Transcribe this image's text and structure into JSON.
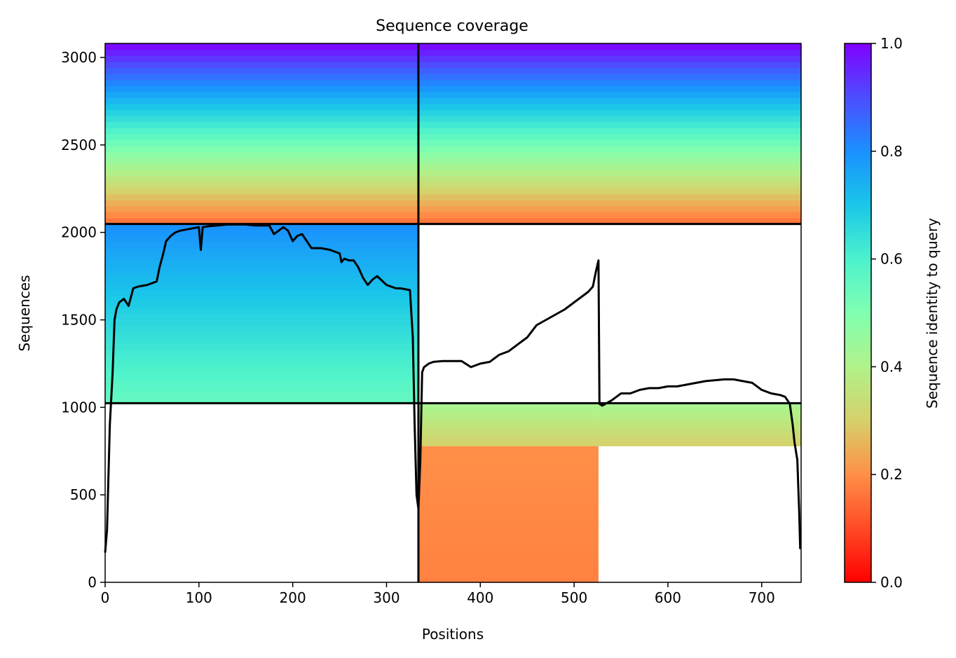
{
  "chart_data": {
    "type": "heatmap",
    "title": "Sequence coverage",
    "xlabel": "Positions",
    "ylabel": "Sequences",
    "xlim": [
      0,
      742
    ],
    "ylim": [
      0,
      3080
    ],
    "xticks": [
      0,
      100,
      200,
      300,
      400,
      500,
      600,
      700
    ],
    "yticks": [
      0,
      500,
      1000,
      1500,
      2000,
      2500,
      3000
    ],
    "colorbar": {
      "label": "Sequence identity to query",
      "colormap": "rainbow_r",
      "range": [
        0,
        1
      ],
      "ticks": [
        "0.0",
        "0.2",
        "0.4",
        "0.6",
        "0.8",
        "1.0"
      ]
    },
    "divider_lines": {
      "x": [
        334
      ],
      "y": [
        1024,
        2048
      ]
    },
    "blocks": [
      {
        "x": [
          0,
          334
        ],
        "y": [
          2048,
          3080
        ],
        "identity_bottom": 0.15,
        "identity_top": 1.0
      },
      {
        "x": [
          334,
          742
        ],
        "y": [
          2048,
          3080
        ],
        "identity_bottom": 0.15,
        "identity_top": 1.0
      },
      {
        "x": [
          0,
          334
        ],
        "y": [
          1024,
          2048
        ],
        "identity_bottom": 0.55,
        "identity_top": 0.8
      },
      {
        "x": [
          334,
          742
        ],
        "y": [
          1024,
          2048
        ],
        "identity_bottom": 0.4,
        "identity_top": 0.4,
        "empty": true
      },
      {
        "x": [
          0,
          334
        ],
        "y": [
          0,
          1024
        ],
        "identity_bottom": 0.2,
        "identity_top": 0.2,
        "empty": true
      },
      {
        "x": [
          334,
          526
        ],
        "y": [
          0,
          780
        ],
        "identity_bottom": 0.18,
        "identity_top": 0.2
      },
      {
        "x": [
          334,
          526
        ],
        "y": [
          780,
          1024
        ],
        "identity_bottom": 0.3,
        "identity_top": 0.42
      },
      {
        "x": [
          526,
          742
        ],
        "y": [
          780,
          1024
        ],
        "identity_bottom": 0.3,
        "identity_top": 0.42
      }
    ],
    "series": [
      {
        "type": "line",
        "color": "#000000",
        "x": [
          0,
          2,
          5,
          8,
          10,
          12,
          15,
          20,
          25,
          30,
          35,
          45,
          55,
          58,
          62,
          65,
          70,
          75,
          80,
          90,
          100,
          102,
          104,
          110,
          120,
          130,
          140,
          150,
          160,
          175,
          180,
          190,
          195,
          200,
          205,
          210,
          220,
          230,
          240,
          250,
          252,
          255,
          260,
          265,
          270,
          275,
          280,
          285,
          290,
          300,
          310,
          315,
          325,
          328,
          330,
          332,
          334,
          336,
          338,
          340,
          345,
          350,
          360,
          370,
          380,
          390,
          400,
          410,
          420,
          430,
          440,
          450,
          460,
          470,
          480,
          490,
          500,
          510,
          515,
          520,
          523,
          526,
          527,
          530,
          540,
          550,
          560,
          570,
          580,
          590,
          600,
          610,
          620,
          630,
          640,
          650,
          660,
          670,
          680,
          690,
          700,
          710,
          720,
          725,
          730,
          733,
          735,
          738,
          740,
          741
        ],
        "y": [
          170,
          300,
          900,
          1200,
          1500,
          1560,
          1600,
          1620,
          1580,
          1680,
          1690,
          1700,
          1720,
          1800,
          1880,
          1950,
          1980,
          2000,
          2010,
          2020,
          2030,
          1900,
          2030,
          2035,
          2040,
          2045,
          2045,
          2045,
          2040,
          2040,
          1990,
          2030,
          2010,
          1950,
          1980,
          1990,
          1910,
          1910,
          1900,
          1880,
          1830,
          1850,
          1840,
          1840,
          1800,
          1740,
          1700,
          1730,
          1750,
          1700,
          1680,
          1680,
          1670,
          1400,
          900,
          500,
          420,
          700,
          1200,
          1230,
          1250,
          1260,
          1265,
          1265,
          1265,
          1230,
          1250,
          1260,
          1300,
          1320,
          1360,
          1400,
          1470,
          1500,
          1530,
          1560,
          1600,
          1640,
          1660,
          1690,
          1770,
          1840,
          1020,
          1010,
          1040,
          1080,
          1080,
          1100,
          1110,
          1110,
          1120,
          1120,
          1130,
          1140,
          1150,
          1155,
          1160,
          1160,
          1150,
          1140,
          1100,
          1080,
          1070,
          1060,
          1020,
          900,
          800,
          700,
          400,
          190
        ]
      }
    ]
  }
}
